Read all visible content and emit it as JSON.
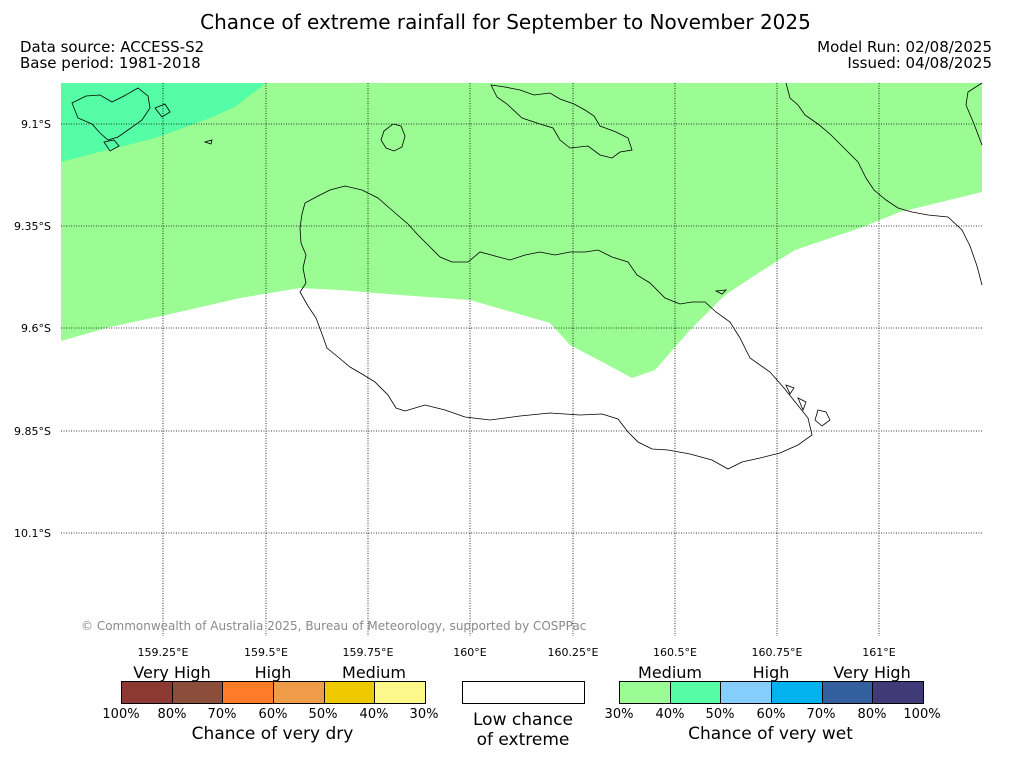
{
  "header": {
    "title": "Chance of extreme rainfall for September to November 2025",
    "data_source": "Data source: ACCESS-S2",
    "base_period": "Base period: 1981-2018",
    "model_run": "Model Run: 02/08/2025",
    "issued": "Issued: 04/08/2025"
  },
  "map": {
    "lat_labels": [
      "9.1°S",
      "9.35°S",
      "9.6°S",
      "9.85°S",
      "10.1°S"
    ],
    "lon_labels": [
      "159.25°E",
      "159.5°E",
      "159.75°E",
      "160°E",
      "160.25°E",
      "160.5°E",
      "160.75°E",
      "161°E"
    ],
    "copyright": "© Commonwealth of Australia 2025, Bureau of Meteorology, supported by COSPPac",
    "colors": {
      "medium_wet": "#9bfc94",
      "high_wet": "#55fea6",
      "coastline": "#000000"
    }
  },
  "legend": {
    "dry": {
      "groups": [
        "Very High",
        "High",
        "Medium"
      ],
      "colors": [
        "#8c3931",
        "#8a4e3b",
        "#ff7b27",
        "#ef9c48",
        "#f0c800",
        "#fef78a"
      ],
      "ticks": [
        "100%",
        "80%",
        "70%",
        "60%",
        "50%",
        "40%",
        "30%"
      ],
      "caption": "Chance of very dry"
    },
    "low": {
      "caption_line1": "Low chance",
      "caption_line2": "of extreme"
    },
    "wet": {
      "groups": [
        "Medium",
        "High",
        "Very High"
      ],
      "colors": [
        "#9bfc94",
        "#55fea6",
        "#85cdfb",
        "#02b2ef",
        "#345f9e",
        "#403a77"
      ],
      "ticks": [
        "30%",
        "40%",
        "50%",
        "60%",
        "70%",
        "80%",
        "100%"
      ],
      "caption": "Chance of very wet"
    }
  }
}
